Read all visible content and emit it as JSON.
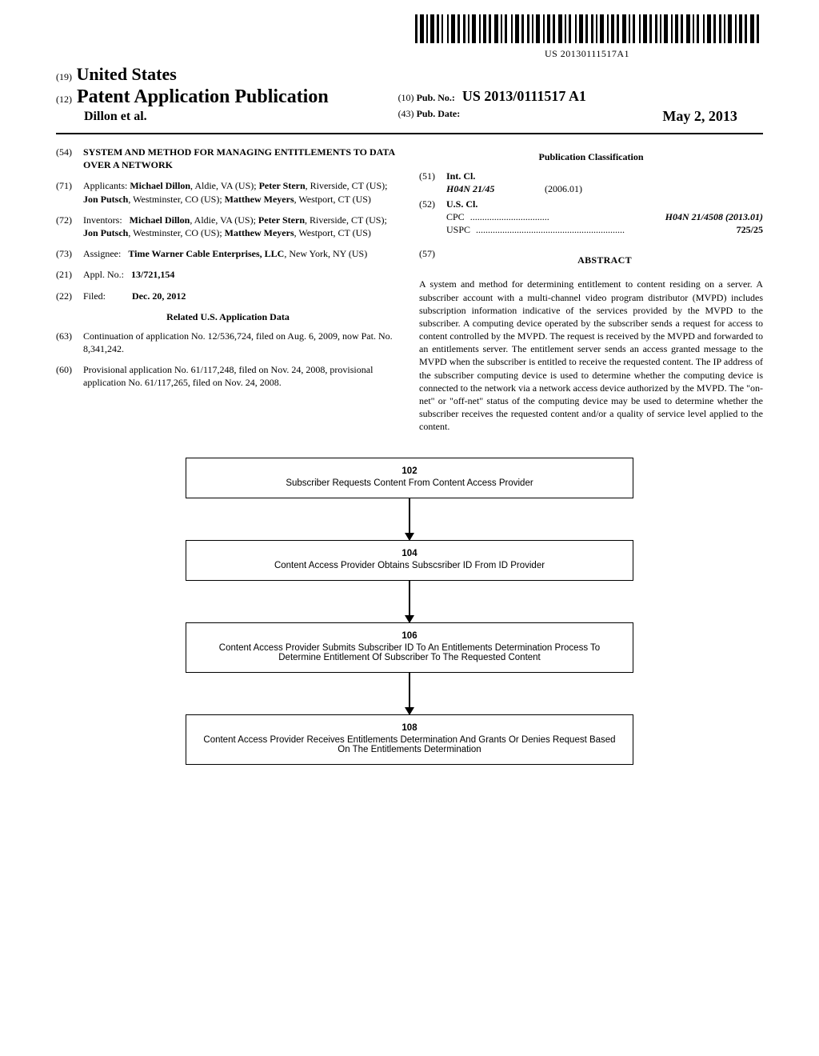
{
  "barcode": {
    "text": "US 20130111517A1"
  },
  "header": {
    "code19": "(19)",
    "country": "United States",
    "code12": "(12)",
    "docType": "Patent Application Publication",
    "authorsShort": "Dillon et al.",
    "code10": "(10)",
    "pubNoLabel": "Pub. No.:",
    "pubNo": "US 2013/0111517 A1",
    "code43": "(43)",
    "pubDateLabel": "Pub. Date:",
    "pubDate": "May 2, 2013"
  },
  "left": {
    "f54": {
      "code": "(54)",
      "title": "SYSTEM AND METHOD FOR MANAGING ENTITLEMENTS TO DATA OVER A NETWORK"
    },
    "f71": {
      "code": "(71)",
      "label": "Applicants:",
      "text": "Michael Dillon, Aldie, VA (US); Peter Stern, Riverside, CT (US); Jon Putsch, Westminster, CO (US); Matthew Meyers, Westport, CT (US)"
    },
    "f72": {
      "code": "(72)",
      "label": "Inventors:",
      "text": "Michael Dillon, Aldie, VA (US); Peter Stern, Riverside, CT (US); Jon Putsch, Westminster, CO (US); Matthew Meyers, Westport, CT (US)"
    },
    "f73": {
      "code": "(73)",
      "label": "Assignee:",
      "text": "Time Warner Cable Enterprises, LLC, New York, NY (US)"
    },
    "f21": {
      "code": "(21)",
      "label": "Appl. No.:",
      "text": "13/721,154"
    },
    "f22": {
      "code": "(22)",
      "label": "Filed:",
      "text": "Dec. 20, 2012"
    },
    "relatedHeading": "Related U.S. Application Data",
    "f63": {
      "code": "(63)",
      "text": "Continuation of application No. 12/536,724, filed on Aug. 6, 2009, now Pat. No. 8,341,242."
    },
    "f60": {
      "code": "(60)",
      "text": "Provisional application No. 61/117,248, filed on Nov. 24, 2008, provisional application No. 61/117,265, filed on Nov. 24, 2008."
    }
  },
  "right": {
    "classifHeading": "Publication Classification",
    "f51": {
      "code": "(51)",
      "label": "Int. Cl.",
      "cls": "H04N 21/45",
      "edition": "(2006.01)"
    },
    "f52": {
      "code": "(52)",
      "label": "U.S. Cl.",
      "cpcLabel": "CPC",
      "cpcVal": "H04N 21/4508 (2013.01)",
      "uspcLabel": "USPC",
      "uspcVal": "725/25"
    },
    "abstract": {
      "code": "(57)",
      "heading": "ABSTRACT",
      "text": "A system and method for determining entitlement to content residing on a server. A subscriber account with a multi-channel video program distributor (MVPD) includes subscription information indicative of the services provided by the MVPD to the subscriber. A computing device operated by the subscriber sends a request for access to content controlled by the MVPD. The request is received by the MVPD and forwarded to an entitlements server. The entitlement server sends an access granted message to the MVPD when the subscriber is entitled to receive the requested content. The IP address of the subscriber computing device is used to determine whether the computing device is connected to the network via a network access device authorized by the MVPD. The \"on-net\" or \"off-net\" status of the computing device may be used to determine whether the subscriber receives the requested content and/or a quality of service level applied to the content."
    }
  },
  "flowchart": {
    "nodes": [
      {
        "num": "102",
        "text": "Subscriber Requests Content From Content Access Provider"
      },
      {
        "num": "104",
        "text": "Content Access Provider Obtains Subscsriber ID From ID Provider"
      },
      {
        "num": "106",
        "text": "Content Access Provider Submits Subscriber ID To An Entitlements Determination Process To Determine Entitlement Of Subscriber To The Requested Content"
      },
      {
        "num": "108",
        "text": "Content Access Provider Receives Entitlements Determination And Grants Or Denies Request Based On The Entitlements Determination"
      }
    ]
  }
}
